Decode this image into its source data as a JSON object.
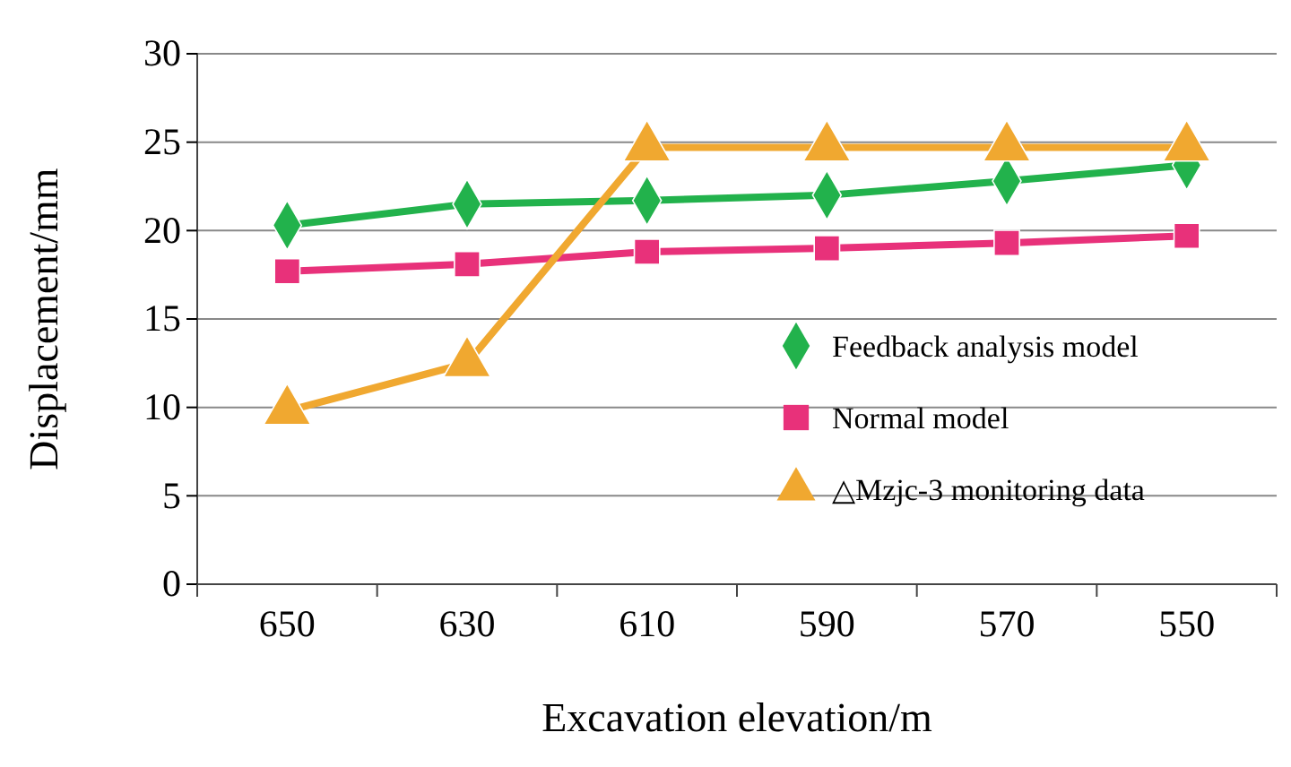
{
  "chart_data": {
    "type": "line",
    "xlabel": "Excavation elevation/m",
    "ylabel": "Displacement/mm",
    "categories": [
      "650",
      "630",
      "610",
      "590",
      "570",
      "550"
    ],
    "ylim": [
      0,
      30
    ],
    "yticks": [
      0,
      5,
      10,
      15,
      20,
      25,
      30
    ],
    "grid": "y",
    "legend": "right",
    "series": [
      {
        "name": "Feedback analysis model",
        "color": "#22b24c",
        "marker": "diamond",
        "values": [
          20.3,
          21.5,
          21.7,
          22.0,
          22.8,
          23.7
        ]
      },
      {
        "name": "Normal model",
        "color": "#e8317a",
        "marker": "square",
        "values": [
          17.7,
          18.1,
          18.8,
          19.0,
          19.3,
          19.7
        ]
      },
      {
        "name": "△Mzjc-3 monitoring data",
        "color": "#f0a830",
        "marker": "triangle",
        "values": [
          9.8,
          12.5,
          24.7,
          24.7,
          24.7,
          24.7
        ]
      }
    ]
  }
}
